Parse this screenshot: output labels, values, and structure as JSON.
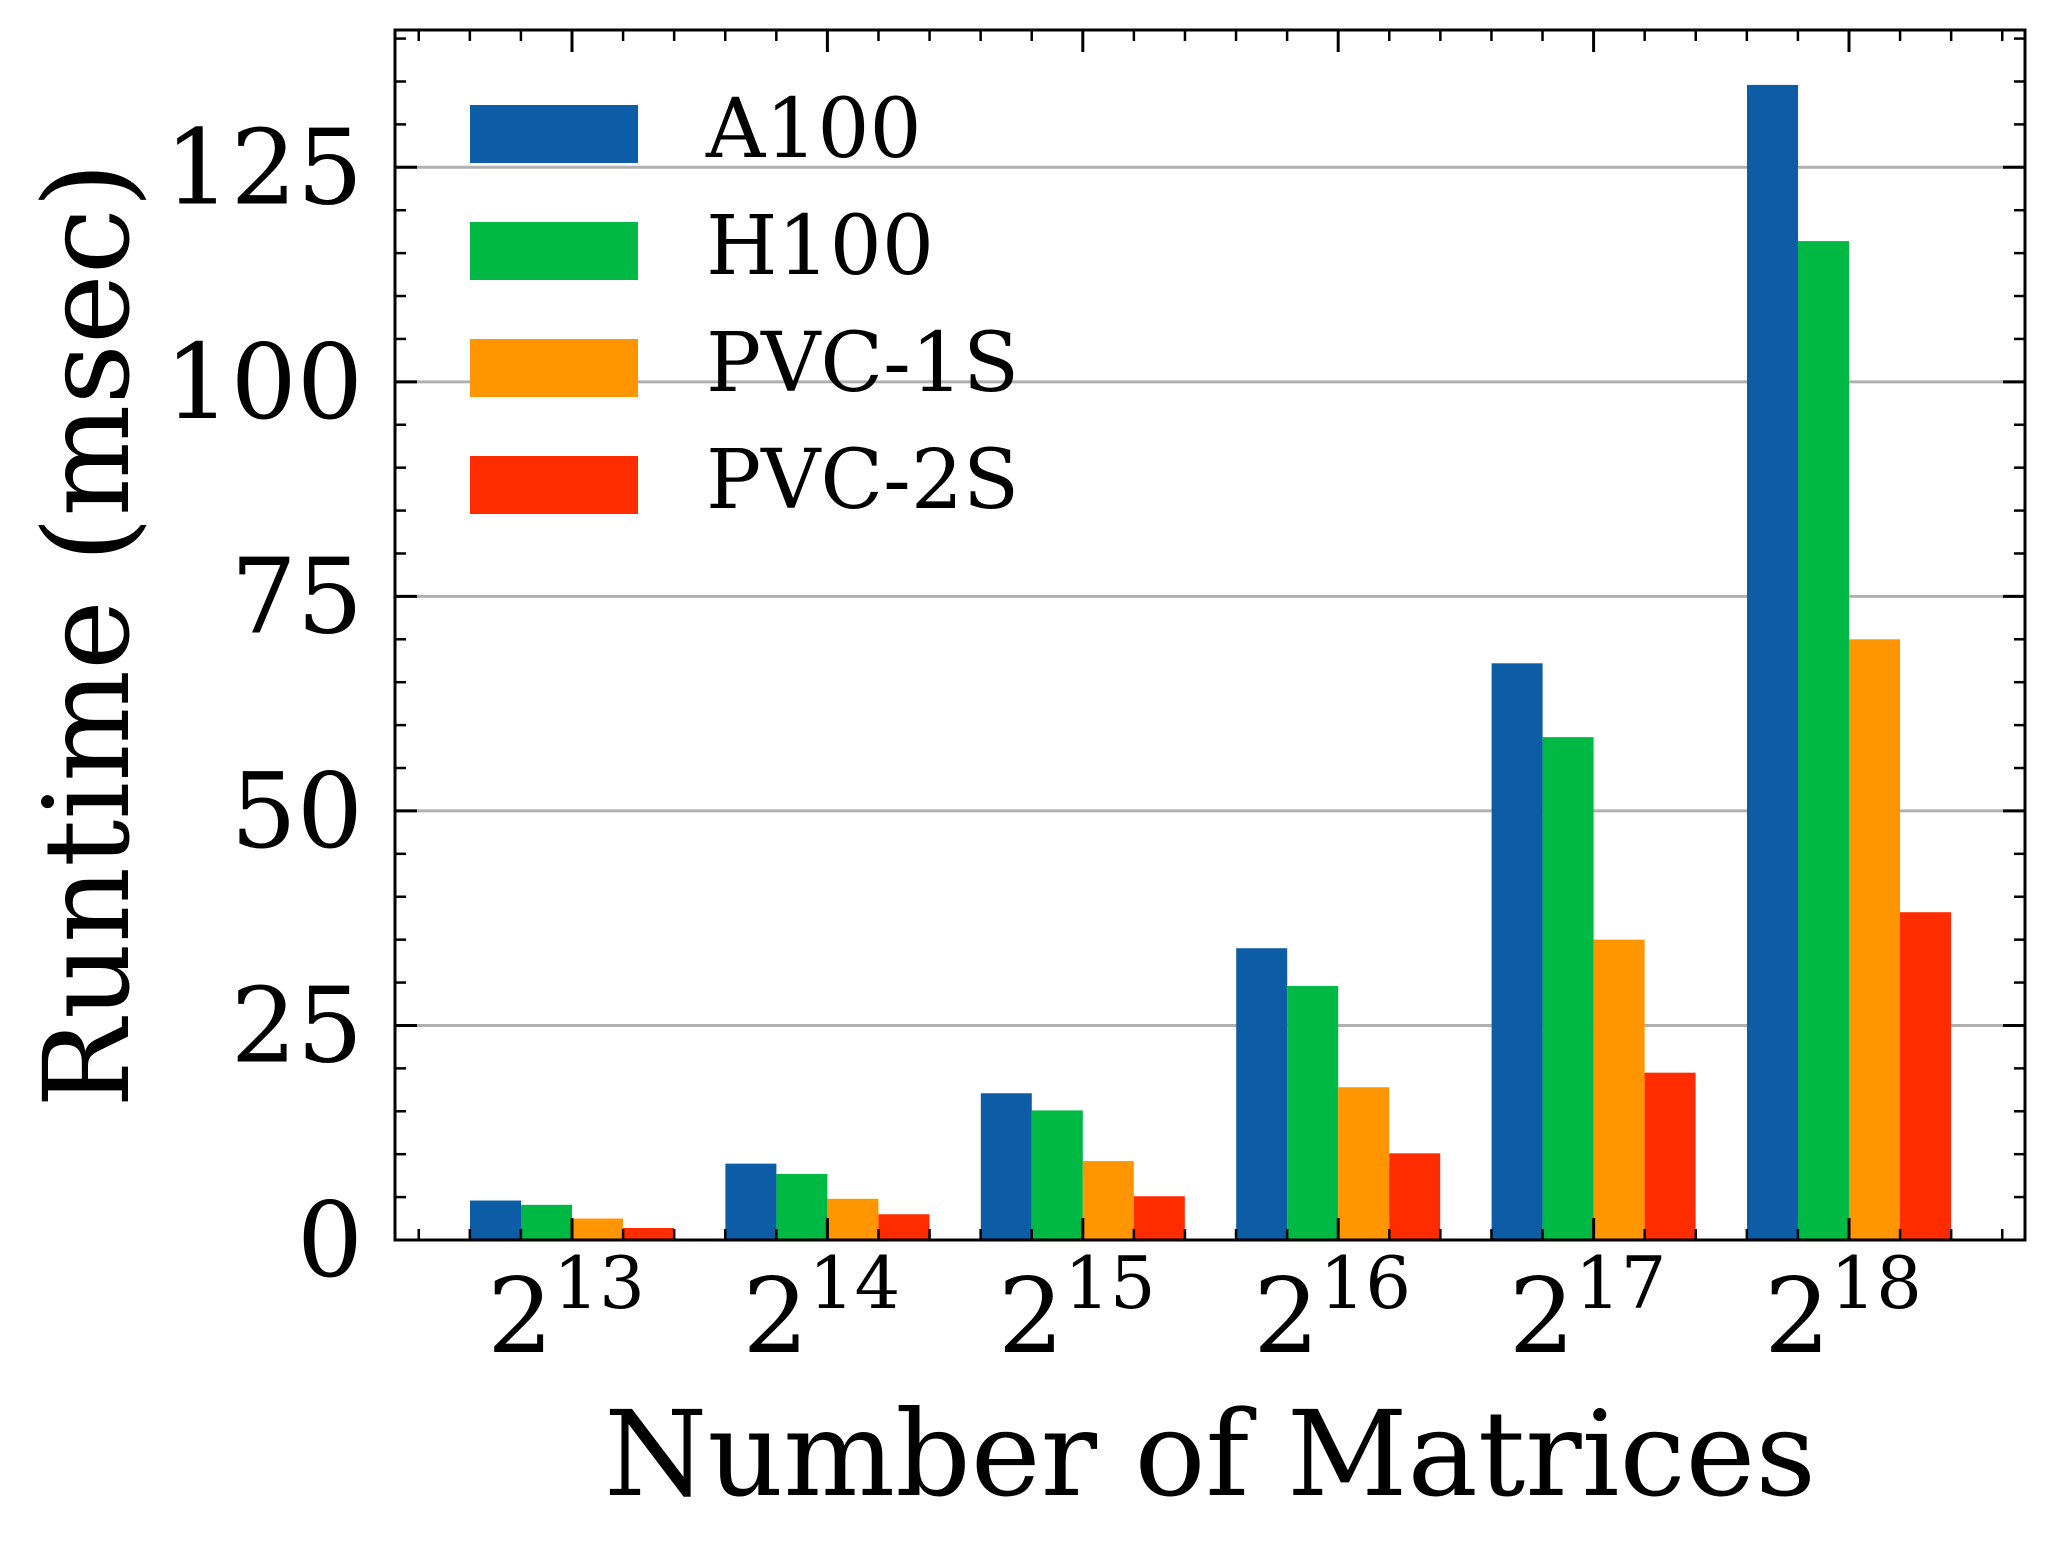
{
  "chart_data": {
    "type": "bar",
    "title": "",
    "xlabel": "Number of Matrices",
    "ylabel": "Runtime (msec)",
    "ylim": [
      0,
      141
    ],
    "yticks": [
      0,
      25,
      50,
      75,
      100,
      125
    ],
    "ytick_labels": [
      "0",
      "25",
      "50",
      "75",
      "100",
      "125"
    ],
    "y_minor_step": 5,
    "grid": "horizontal",
    "categories": [
      {
        "base": "2",
        "exp": "13"
      },
      {
        "base": "2",
        "exp": "14"
      },
      {
        "base": "2",
        "exp": "15"
      },
      {
        "base": "2",
        "exp": "16"
      },
      {
        "base": "2",
        "exp": "17"
      },
      {
        "base": "2",
        "exp": "18"
      }
    ],
    "series": [
      {
        "name": "A100",
        "color": "#0c5da5",
        "values": [
          4.6,
          8.9,
          17.1,
          34.0,
          67.2,
          134.6
        ]
      },
      {
        "name": "H100",
        "color": "#00b945",
        "values": [
          4.1,
          7.7,
          15.1,
          29.6,
          58.6,
          116.4
        ]
      },
      {
        "name": "PVC-1S",
        "color": "#ff9500",
        "values": [
          2.5,
          4.8,
          9.2,
          17.8,
          35.0,
          70.0
        ]
      },
      {
        "name": "PVC-2S",
        "color": "#ff2c00",
        "values": [
          1.4,
          3.0,
          5.1,
          10.1,
          19.5,
          38.2
        ]
      }
    ],
    "legend_position": "top-left"
  }
}
